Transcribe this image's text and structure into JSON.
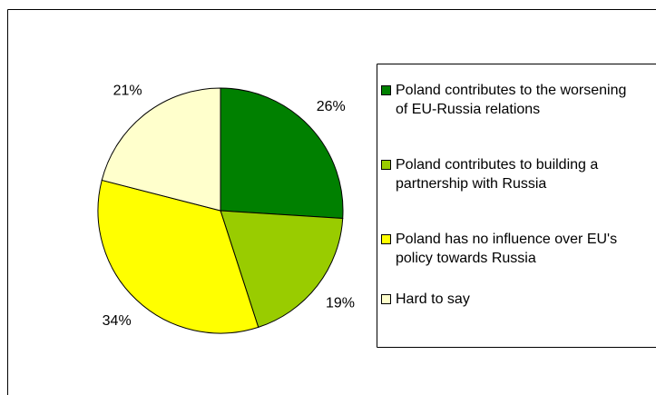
{
  "chart_data": {
    "type": "pie",
    "categories": [
      "Poland contributes to the worsening of EU-Russia relations",
      "Poland contributes to building a partnership with Russia",
      "Poland has no influence over EU's policy towards Russia",
      "Hard to say"
    ],
    "values": [
      26,
      19,
      34,
      21
    ],
    "value_labels": [
      "26%",
      "19%",
      "34%",
      "21%"
    ],
    "colors": [
      "#008000",
      "#99cc00",
      "#ffff00",
      "#ffffcc"
    ]
  }
}
